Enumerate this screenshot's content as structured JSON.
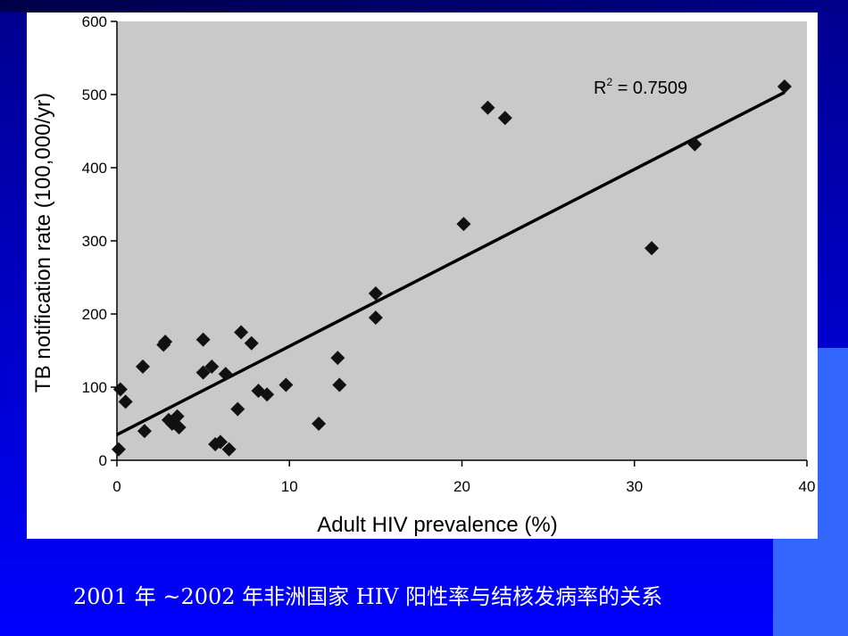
{
  "caption": "2001 年 ~2002 年非洲国家 HIV 阳性率与结核发病率的关系",
  "colors": {
    "background_top": "#00008e",
    "background_bottom": "#0000ff",
    "accent_tab": "#3366ff",
    "plot_fill": "#c9c9c9",
    "marker": "#111111"
  },
  "chart_data": {
    "type": "scatter",
    "xlabel": "Adult HIV prevalence (%)",
    "ylabel": "TB notification rate (100,000/yr)",
    "xlim": [
      0,
      40
    ],
    "ylim": [
      0,
      600
    ],
    "xticks": [
      0,
      10,
      20,
      30,
      40
    ],
    "yticks": [
      0,
      100,
      200,
      300,
      400,
      500,
      600
    ],
    "annotation": {
      "label": "R",
      "superscript": "2",
      "text": " = 0.7509"
    },
    "fit_line": {
      "x": [
        0,
        38.7
      ],
      "y": [
        35,
        503
      ]
    },
    "points": [
      {
        "x": 0.1,
        "y": 15
      },
      {
        "x": 0.2,
        "y": 97
      },
      {
        "x": 0.5,
        "y": 80
      },
      {
        "x": 1.5,
        "y": 128
      },
      {
        "x": 1.6,
        "y": 40
      },
      {
        "x": 2.7,
        "y": 158
      },
      {
        "x": 2.8,
        "y": 162
      },
      {
        "x": 3.0,
        "y": 55
      },
      {
        "x": 3.2,
        "y": 50
      },
      {
        "x": 3.5,
        "y": 60
      },
      {
        "x": 3.6,
        "y": 45
      },
      {
        "x": 5.0,
        "y": 165
      },
      {
        "x": 5.0,
        "y": 120
      },
      {
        "x": 5.5,
        "y": 128
      },
      {
        "x": 5.7,
        "y": 22
      },
      {
        "x": 6.0,
        "y": 25
      },
      {
        "x": 6.3,
        "y": 118
      },
      {
        "x": 6.5,
        "y": 15
      },
      {
        "x": 7.0,
        "y": 70
      },
      {
        "x": 7.2,
        "y": 175
      },
      {
        "x": 7.8,
        "y": 160
      },
      {
        "x": 8.2,
        "y": 95
      },
      {
        "x": 8.7,
        "y": 90
      },
      {
        "x": 9.8,
        "y": 103
      },
      {
        "x": 11.7,
        "y": 50
      },
      {
        "x": 12.8,
        "y": 140
      },
      {
        "x": 12.9,
        "y": 103
      },
      {
        "x": 15.0,
        "y": 228
      },
      {
        "x": 15.0,
        "y": 195
      },
      {
        "x": 20.1,
        "y": 323
      },
      {
        "x": 21.5,
        "y": 482
      },
      {
        "x": 22.5,
        "y": 468
      },
      {
        "x": 31.0,
        "y": 290
      },
      {
        "x": 33.5,
        "y": 432
      },
      {
        "x": 38.7,
        "y": 511
      }
    ]
  }
}
